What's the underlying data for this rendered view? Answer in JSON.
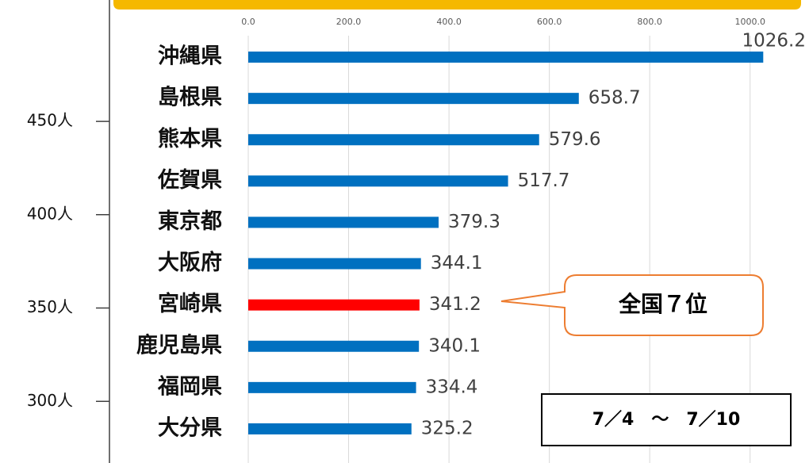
{
  "chart_data": [
    {
      "type": "hbar",
      "categories": [
        "沖縄県",
        "島根県",
        "熊本県",
        "佐賀県",
        "東京都",
        "大阪府",
        "宮崎県",
        "鹿児島県",
        "福岡県",
        "大分県"
      ],
      "values": [
        1026.2,
        658.7,
        579.6,
        517.7,
        379.3,
        344.1,
        341.2,
        340.1,
        334.4,
        325.2
      ],
      "colors": [
        "#0070c0",
        "#0070c0",
        "#0070c0",
        "#0070c0",
        "#0070c0",
        "#0070c0",
        "#ff0000",
        "#0070c0",
        "#0070c0",
        "#0070c0"
      ],
      "xlim": [
        0,
        1100
      ],
      "xticks": [
        {
          "value": 0,
          "label": "0.0"
        },
        {
          "value": 200,
          "label": "200.0"
        },
        {
          "value": 400,
          "label": "400.0"
        },
        {
          "value": 600,
          "label": "600.0"
        },
        {
          "value": 800,
          "label": "800.0"
        },
        {
          "value": 1000,
          "label": "1000.0"
        }
      ],
      "grid": true,
      "annotations": [
        "全国７位",
        "7／4　～　7／10"
      ]
    },
    {
      "type": "axis",
      "ylim": [
        267,
        515
      ],
      "yticks": [
        {
          "value": 300,
          "label": "300人"
        },
        {
          "value": 350,
          "label": "350人"
        },
        {
          "value": 400,
          "label": "400人"
        },
        {
          "value": 450,
          "label": "450人"
        }
      ]
    }
  ]
}
